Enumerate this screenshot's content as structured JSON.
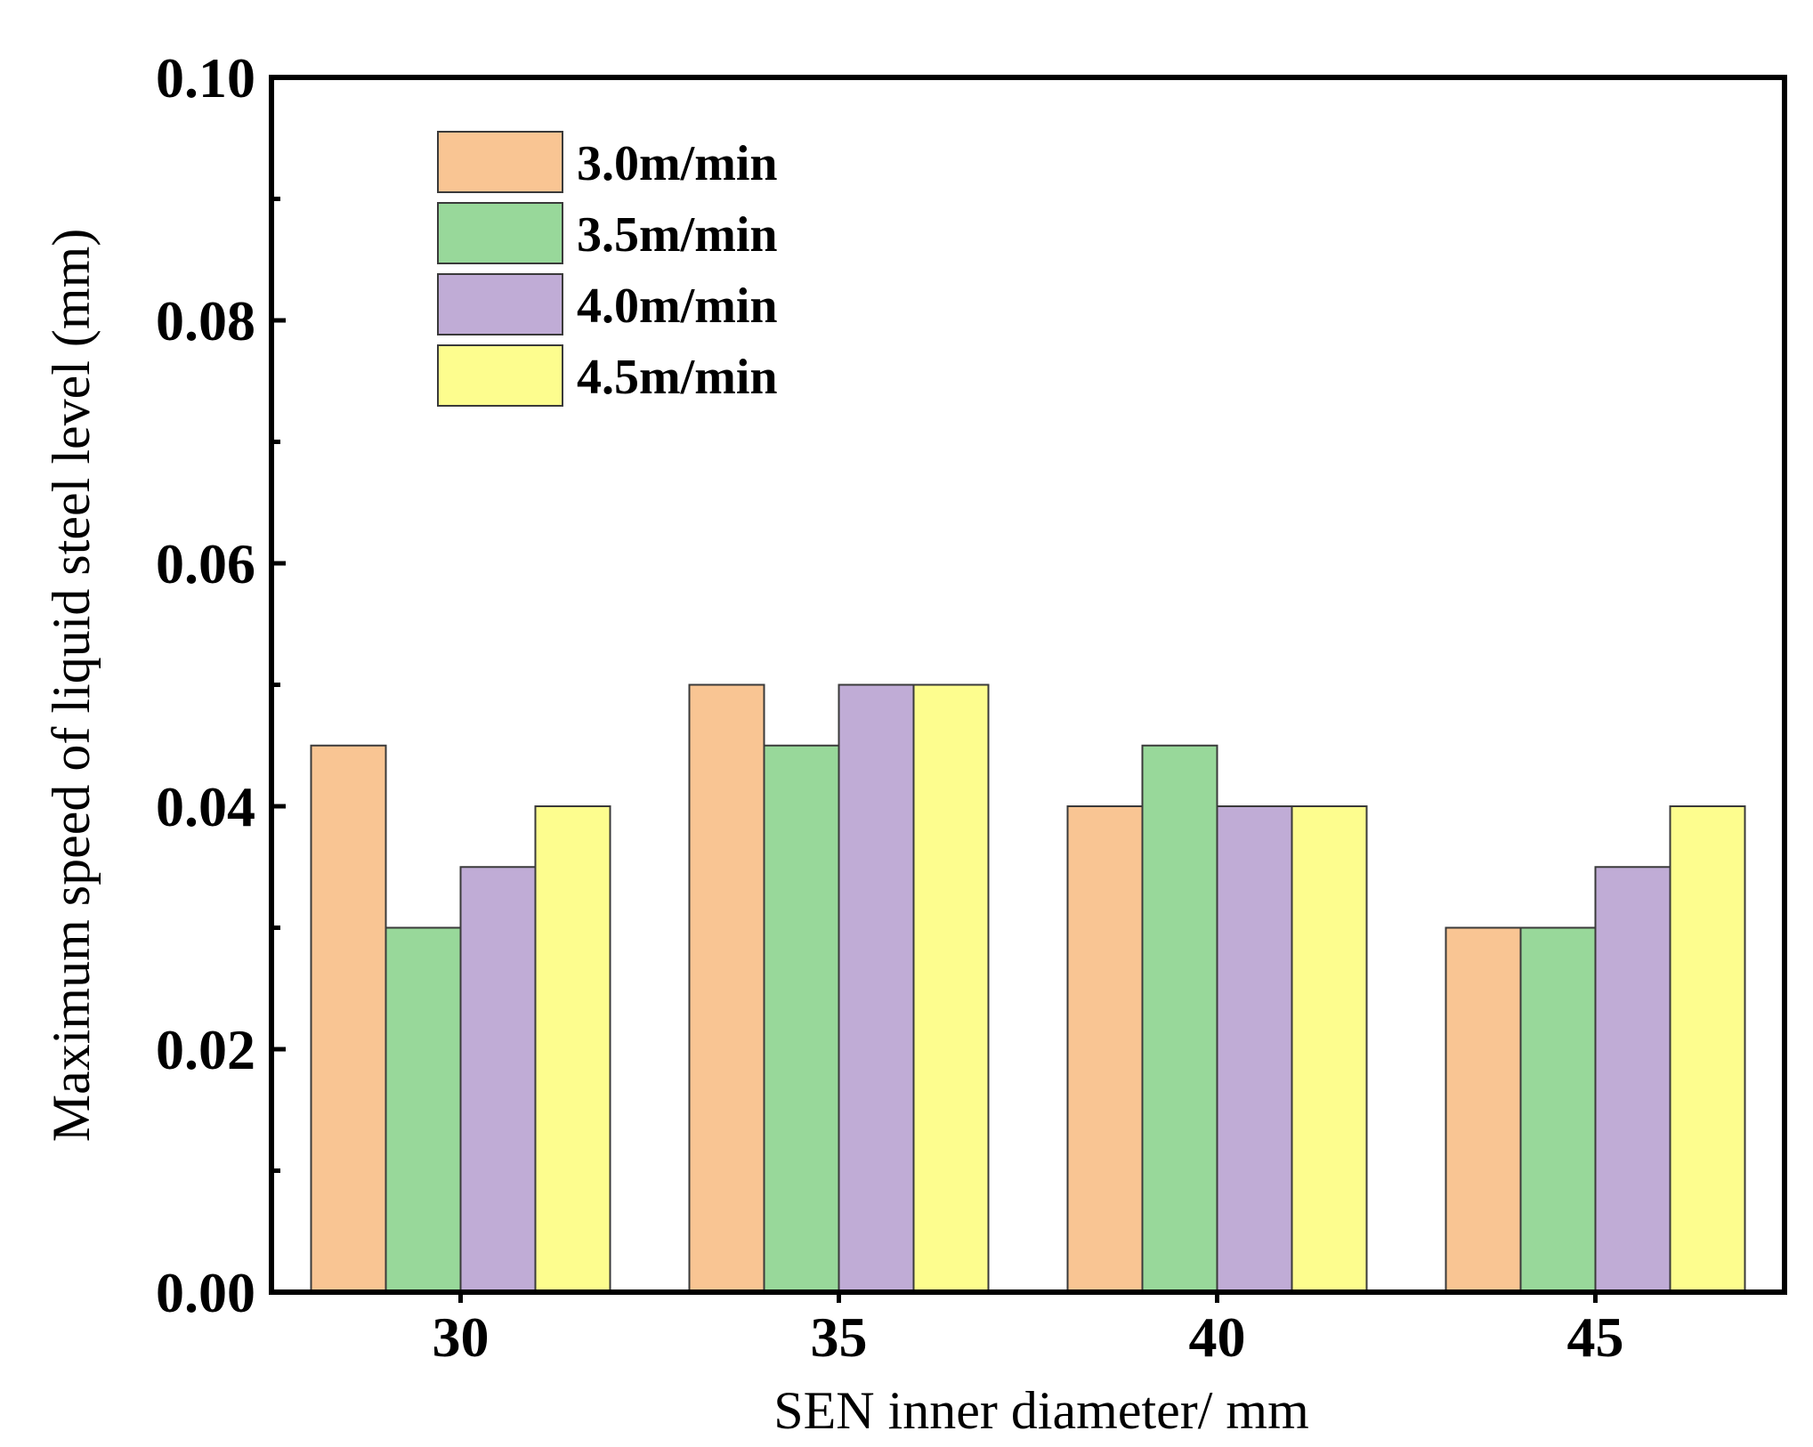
{
  "chart_data": {
    "type": "bar",
    "title": "",
    "xlabel": "SEN inner diameter/ mm",
    "ylabel": "Maximum speed of liquid steel level (mm)",
    "categories": [
      "30",
      "35",
      "40",
      "45"
    ],
    "series": [
      {
        "name": "3.0m/min",
        "color": "#f9c593",
        "values": [
          0.045,
          0.05,
          0.04,
          0.03
        ]
      },
      {
        "name": "3.5m/min",
        "color": "#98d89a",
        "values": [
          0.03,
          0.045,
          0.045,
          0.03
        ]
      },
      {
        "name": "4.0m/min",
        "color": "#c0acd6",
        "values": [
          0.035,
          0.05,
          0.04,
          0.035
        ]
      },
      {
        "name": "4.5m/min",
        "color": "#fdfd8e",
        "values": [
          0.04,
          0.05,
          0.04,
          0.04
        ]
      }
    ],
    "yticks": [
      "0.00",
      "0.02",
      "0.04",
      "0.06",
      "0.08",
      "0.10"
    ],
    "ylim": [
      0,
      0.1
    ],
    "legend_position": "top-left",
    "grid": false
  }
}
